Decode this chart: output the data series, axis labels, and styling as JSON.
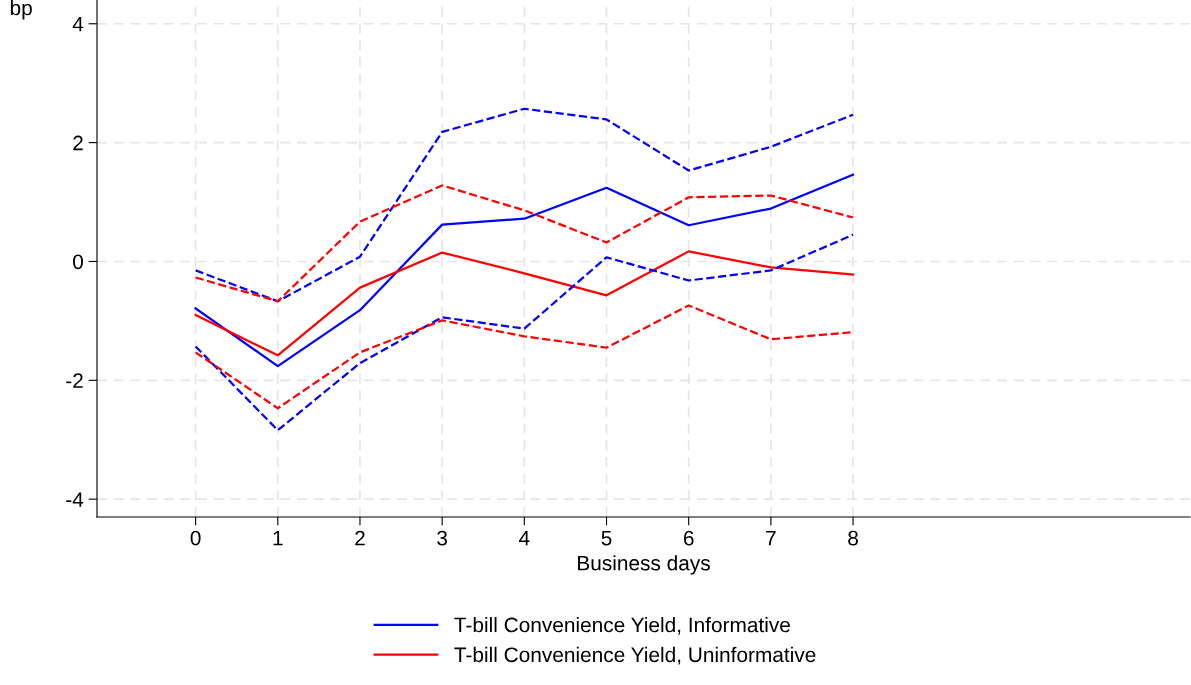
{
  "chart_data": {
    "type": "line",
    "xlabel": "Business days",
    "ylabel": "bp",
    "x": [
      0,
      1,
      2,
      3,
      4,
      5,
      6,
      7,
      8
    ],
    "xlim": [
      -1.2,
      12.1
    ],
    "xticks": [
      0,
      1,
      2,
      3,
      4,
      5,
      6,
      7,
      8
    ],
    "ylim": [
      -4.3,
      4.4
    ],
    "yticks": [
      -4,
      -2,
      0,
      2,
      4
    ],
    "grid": true,
    "legend": "bottom",
    "marker": "none",
    "series": [
      {
        "name": "T-bill Convenience Yield, Informative",
        "color": "#0000ff",
        "line_style": "solid",
        "values": [
          -0.79,
          -1.76,
          -0.82,
          0.62,
          0.72,
          1.24,
          0.61,
          0.89,
          1.46
        ]
      },
      {
        "name": "T-bill Convenience Yield, Uninformative",
        "color": "#ff0000",
        "line_style": "solid",
        "values": [
          -0.9,
          -1.58,
          -0.44,
          0.15,
          -0.2,
          -0.57,
          0.17,
          -0.1,
          -0.22
        ]
      },
      {
        "color": "#0000ff",
        "line_style": "dashed",
        "values": [
          -0.15,
          -0.67,
          0.08,
          2.18,
          2.57,
          2.39,
          1.53,
          1.93,
          2.47
        ]
      },
      {
        "color": "#0000ff",
        "line_style": "dashed",
        "values": [
          -1.43,
          -2.84,
          -1.71,
          -0.94,
          -1.13,
          0.07,
          -0.32,
          -0.15,
          0.45
        ]
      },
      {
        "color": "#ff0000",
        "line_style": "dashed",
        "values": [
          -0.27,
          -0.67,
          0.67,
          1.28,
          0.86,
          0.32,
          1.08,
          1.11,
          0.74
        ]
      },
      {
        "color": "#ff0000",
        "line_style": "dashed",
        "values": [
          -1.53,
          -2.47,
          -1.53,
          -0.99,
          -1.26,
          -1.45,
          -0.74,
          -1.31,
          -1.19
        ]
      }
    ]
  }
}
